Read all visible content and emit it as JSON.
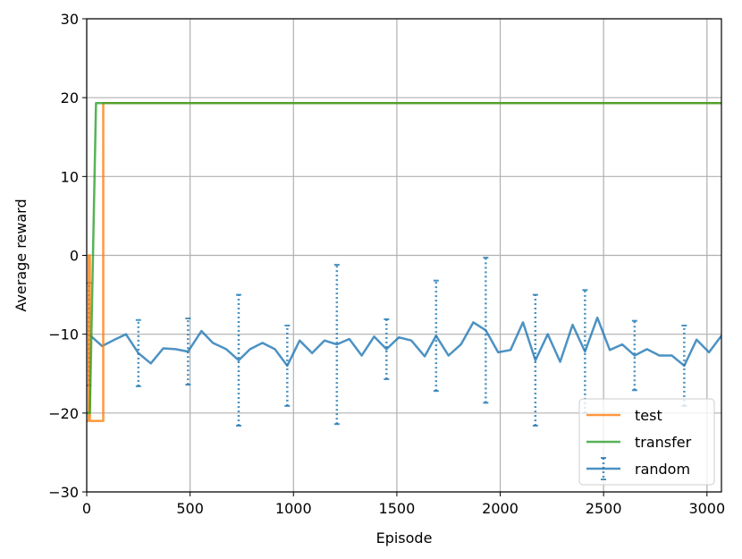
{
  "chart_data": {
    "type": "line",
    "xlabel": "Episode",
    "ylabel": "Average reward",
    "xlim": [
      0,
      3070
    ],
    "ylim": [
      -30,
      30
    ],
    "xticks": [
      "0",
      "500",
      "1000",
      "1500",
      "2000",
      "2500",
      "3000"
    ],
    "xtick_values": [
      0,
      500,
      1000,
      1500,
      2000,
      2500,
      3000
    ],
    "yticks": [
      "30",
      "20",
      "10",
      "0",
      "−10",
      "−20",
      "−30"
    ],
    "ytick_values": [
      30,
      20,
      10,
      0,
      -10,
      -20,
      -30
    ],
    "grid": true,
    "legend_position": "lower-right",
    "series": [
      {
        "name": "test",
        "color": "#ff7f0e",
        "points": [
          [
            0,
            -21
          ],
          [
            10,
            -21
          ],
          [
            10,
            0
          ],
          [
            15,
            0
          ],
          [
            15,
            -21
          ],
          [
            80,
            -21
          ],
          [
            80,
            19.3
          ],
          [
            3070,
            19.3
          ]
        ]
      },
      {
        "name": "transfer",
        "color": "#2ca02c",
        "points": [
          [
            0,
            -20
          ],
          [
            15,
            -20
          ],
          [
            45,
            19.3
          ],
          [
            3070,
            19.3
          ]
        ]
      },
      {
        "name": "random",
        "color": "#1f77b4",
        "points": [
          [
            10,
            -10.0
          ],
          [
            75,
            -11.5
          ],
          [
            135,
            -10.7
          ],
          [
            190,
            -10.0
          ],
          [
            250,
            -12.4
          ],
          [
            310,
            -13.7
          ],
          [
            370,
            -11.8
          ],
          [
            430,
            -11.9
          ],
          [
            490,
            -12.2
          ],
          [
            555,
            -9.6
          ],
          [
            610,
            -11.1
          ],
          [
            675,
            -11.9
          ],
          [
            735,
            -13.3
          ],
          [
            790,
            -11.9
          ],
          [
            850,
            -11.1
          ],
          [
            910,
            -11.9
          ],
          [
            970,
            -14.0
          ],
          [
            1030,
            -10.8
          ],
          [
            1090,
            -12.4
          ],
          [
            1150,
            -10.8
          ],
          [
            1210,
            -11.3
          ],
          [
            1270,
            -10.6
          ],
          [
            1330,
            -12.7
          ],
          [
            1390,
            -10.3
          ],
          [
            1450,
            -11.9
          ],
          [
            1510,
            -10.4
          ],
          [
            1570,
            -10.8
          ],
          [
            1635,
            -12.8
          ],
          [
            1690,
            -10.2
          ],
          [
            1750,
            -12.7
          ],
          [
            1810,
            -11.3
          ],
          [
            1870,
            -8.5
          ],
          [
            1930,
            -9.5
          ],
          [
            1990,
            -12.3
          ],
          [
            2050,
            -12.0
          ],
          [
            2110,
            -8.5
          ],
          [
            2170,
            -13.3
          ],
          [
            2230,
            -10.0
          ],
          [
            2290,
            -13.5
          ],
          [
            2350,
            -8.8
          ],
          [
            2410,
            -12.2
          ],
          [
            2470,
            -7.9
          ],
          [
            2530,
            -12.0
          ],
          [
            2590,
            -11.3
          ],
          [
            2650,
            -12.7
          ],
          [
            2710,
            -11.9
          ],
          [
            2770,
            -12.7
          ],
          [
            2830,
            -12.7
          ],
          [
            2890,
            -14.0
          ],
          [
            2950,
            -10.7
          ],
          [
            3010,
            -12.3
          ],
          [
            3070,
            -10.2
          ]
        ],
        "errorbars": [
          [
            10,
            -10.0,
            6.5
          ],
          [
            250,
            -12.4,
            4.2
          ],
          [
            490,
            -12.2,
            4.2
          ],
          [
            735,
            -13.3,
            8.3
          ],
          [
            970,
            -14.0,
            5.1
          ],
          [
            1210,
            -11.3,
            10.1
          ],
          [
            1450,
            -11.9,
            3.8
          ],
          [
            1690,
            -10.2,
            7.0
          ],
          [
            1930,
            -9.5,
            9.2
          ],
          [
            2170,
            -13.3,
            8.3
          ],
          [
            2410,
            -12.2,
            7.8
          ],
          [
            2650,
            -12.7,
            4.4
          ],
          [
            2890,
            -14.0,
            5.1
          ]
        ]
      }
    ]
  }
}
